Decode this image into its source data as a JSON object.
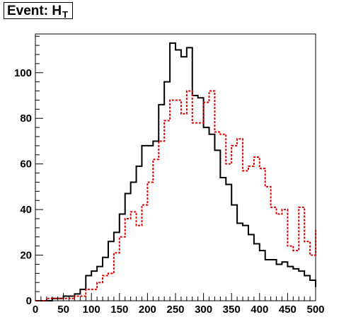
{
  "title_main": "Event: H",
  "title_sub": "T",
  "chart_data": {
    "type": "histogram",
    "title": "Event: H_T",
    "xlabel": "",
    "ylabel": "",
    "xlim": [
      0,
      500
    ],
    "ylim": [
      0,
      117
    ],
    "xticks": [
      0,
      50,
      100,
      150,
      200,
      250,
      300,
      350,
      400,
      450,
      500
    ],
    "yticks": [
      0,
      20,
      40,
      60,
      80,
      100
    ],
    "bin_width": 10,
    "x_bin_edges_start": 0,
    "series": [
      {
        "style": "solid",
        "color": "#000000",
        "values": [
          0,
          0,
          0,
          1,
          1,
          2,
          2,
          3,
          5,
          11,
          13,
          15,
          19,
          26,
          30,
          38,
          47,
          52,
          59,
          68,
          68,
          70,
          86,
          96,
          113,
          110,
          107,
          111,
          90,
          89,
          76,
          73,
          66,
          54,
          51,
          42,
          34,
          33,
          29,
          25,
          22,
          18,
          18,
          16,
          17,
          15,
          14,
          13,
          11,
          9,
          6
        ]
      },
      {
        "style": "dashed",
        "color": "#dd0000",
        "values": [
          0,
          0,
          1,
          1,
          1,
          1,
          1,
          2,
          2,
          5,
          5,
          8,
          11,
          12,
          21,
          28,
          36,
          39,
          33,
          42,
          52,
          62,
          70,
          79,
          88,
          88,
          82,
          92,
          78,
          78,
          87,
          92,
          74,
          73,
          60,
          68,
          71,
          57,
          59,
          63,
          58,
          50,
          41,
          38,
          40,
          24,
          22,
          41,
          26,
          20,
          31
        ]
      }
    ]
  }
}
